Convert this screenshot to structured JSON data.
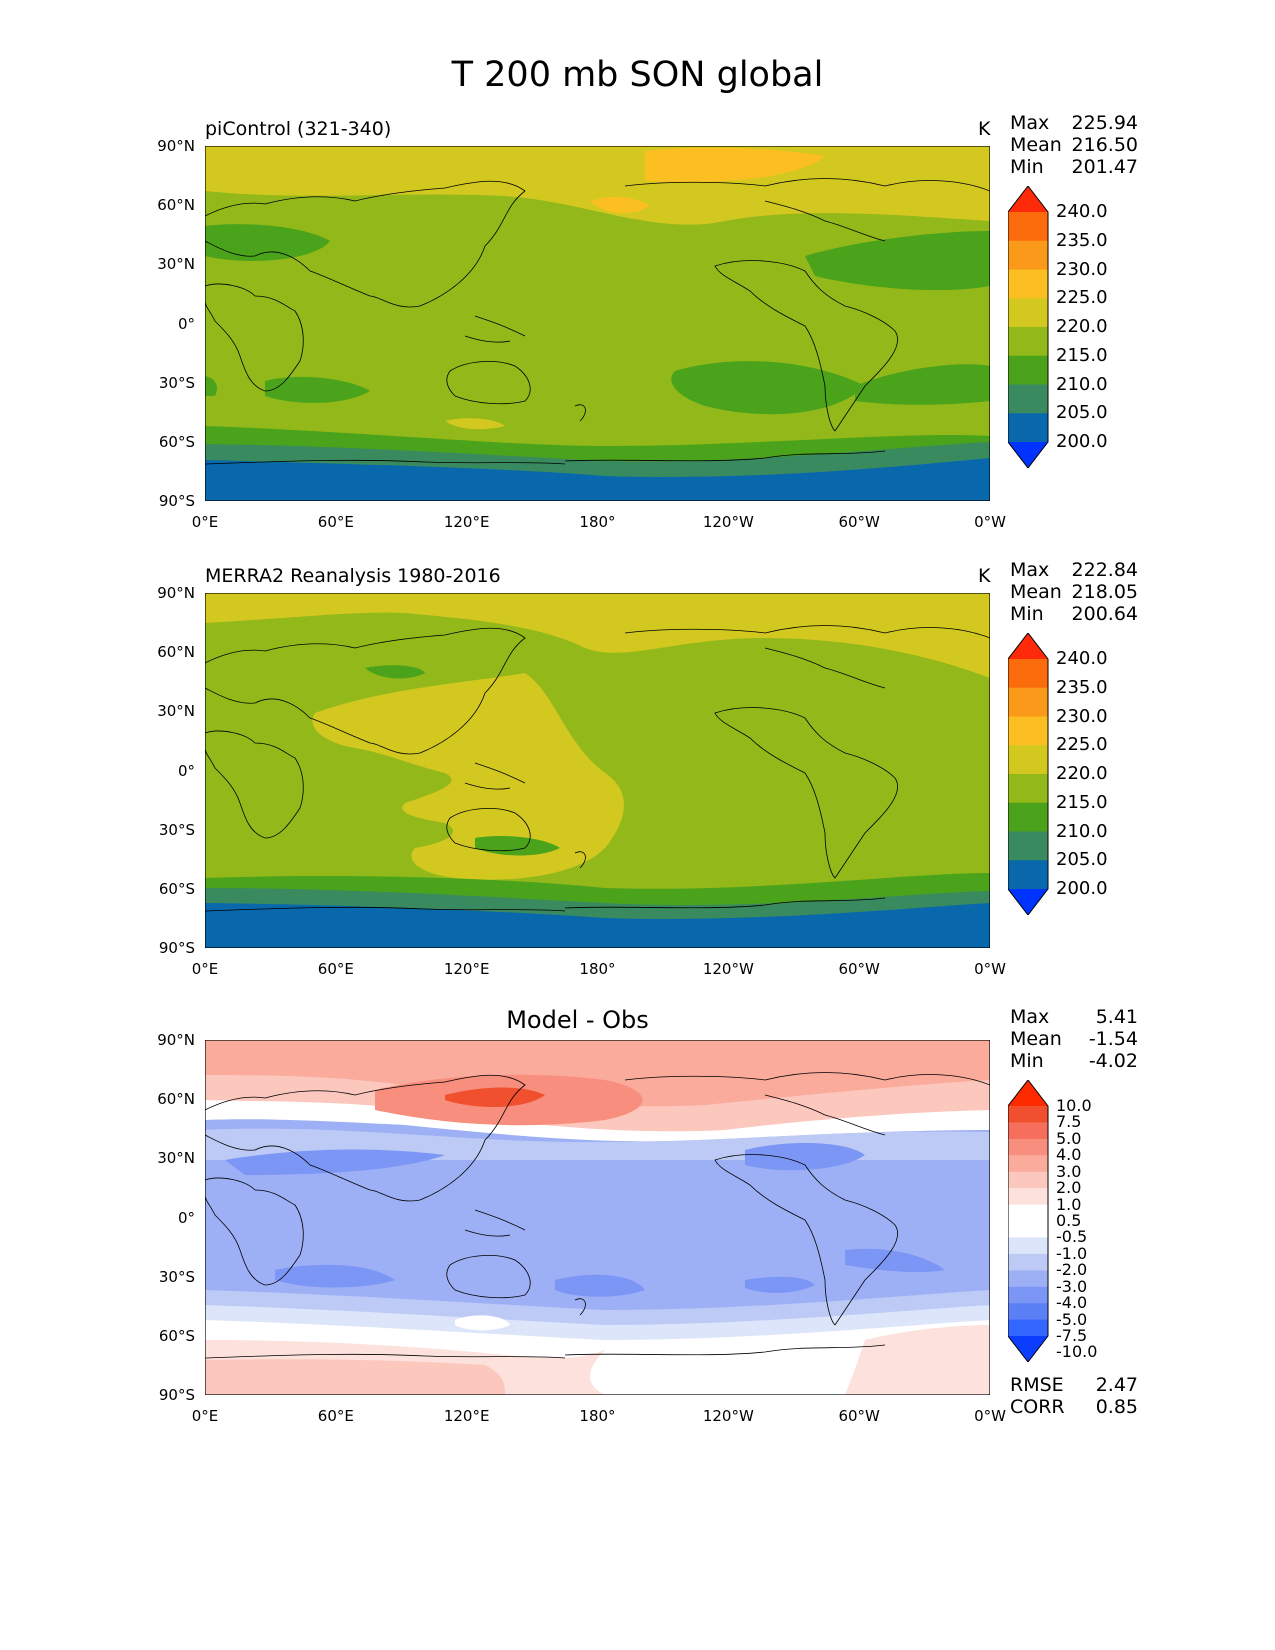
{
  "figure": {
    "title": "T 200 mb SON global"
  },
  "axes": {
    "lat_ticks": [
      "90°N",
      "60°N",
      "30°N",
      "0°",
      "30°S",
      "60°S",
      "90°S"
    ],
    "lon_ticks": [
      "0°E",
      "60°E",
      "120°E",
      "180°",
      "120°W",
      "60°W",
      "0°W"
    ]
  },
  "panels": [
    {
      "label": "piControl (321-340)",
      "units": "K",
      "stats": {
        "max_label": "Max",
        "max": "225.94",
        "mean_label": "Mean",
        "mean": "216.50",
        "min_label": "Min",
        "min": "201.47"
      },
      "colorbar_labels": [
        "240.0",
        "235.0",
        "230.0",
        "225.0",
        "220.0",
        "215.0",
        "210.0",
        "205.0",
        "200.0"
      ]
    },
    {
      "label": "MERRA2 Reanalysis 1980-2016",
      "units": "K",
      "stats": {
        "max_label": "Max",
        "max": "222.84",
        "mean_label": "Mean",
        "mean": "218.05",
        "min_label": "Min",
        "min": "200.64"
      },
      "colorbar_labels": [
        "240.0",
        "235.0",
        "230.0",
        "225.0",
        "220.0",
        "215.0",
        "210.0",
        "205.0",
        "200.0"
      ]
    },
    {
      "label": "Model - Obs",
      "stats": {
        "max_label": "Max",
        "max": "5.41",
        "mean_label": "Mean",
        "mean": "-1.54",
        "min_label": "Min",
        "min": "-4.02",
        "rmse_label": "RMSE",
        "rmse": "2.47",
        "corr_label": "CORR",
        "corr": "0.85"
      },
      "colorbar_labels": [
        "10.0",
        "7.5",
        "5.0",
        "4.0",
        "3.0",
        "2.0",
        "1.0",
        "0.5",
        "-0.5",
        "-1.0",
        "-2.0",
        "-3.0",
        "-4.0",
        "-5.0",
        "-7.5",
        "-10.0"
      ]
    }
  ],
  "colors": {
    "field_bins": [
      "#0033ff",
      "#0868ab",
      "#3a8a5f",
      "#4aa31a",
      "#93b81a",
      "#d3c820",
      "#fbbf22",
      "#fb9a1a",
      "#fb6d0c",
      "#ff2a0a"
    ],
    "diff_bins": [
      "#0b3dff",
      "#3366ff",
      "#5b80f5",
      "#7b96f5",
      "#9eb0f5",
      "#bccaf5",
      "#dde5fa",
      "#ffffff",
      "#ffffff",
      "#fde1dc",
      "#fcc7bd",
      "#fbab9c",
      "#f88e7d",
      "#f66e5c",
      "#f1502e",
      "#ff2a00"
    ],
    "coastline": "#000000"
  }
}
